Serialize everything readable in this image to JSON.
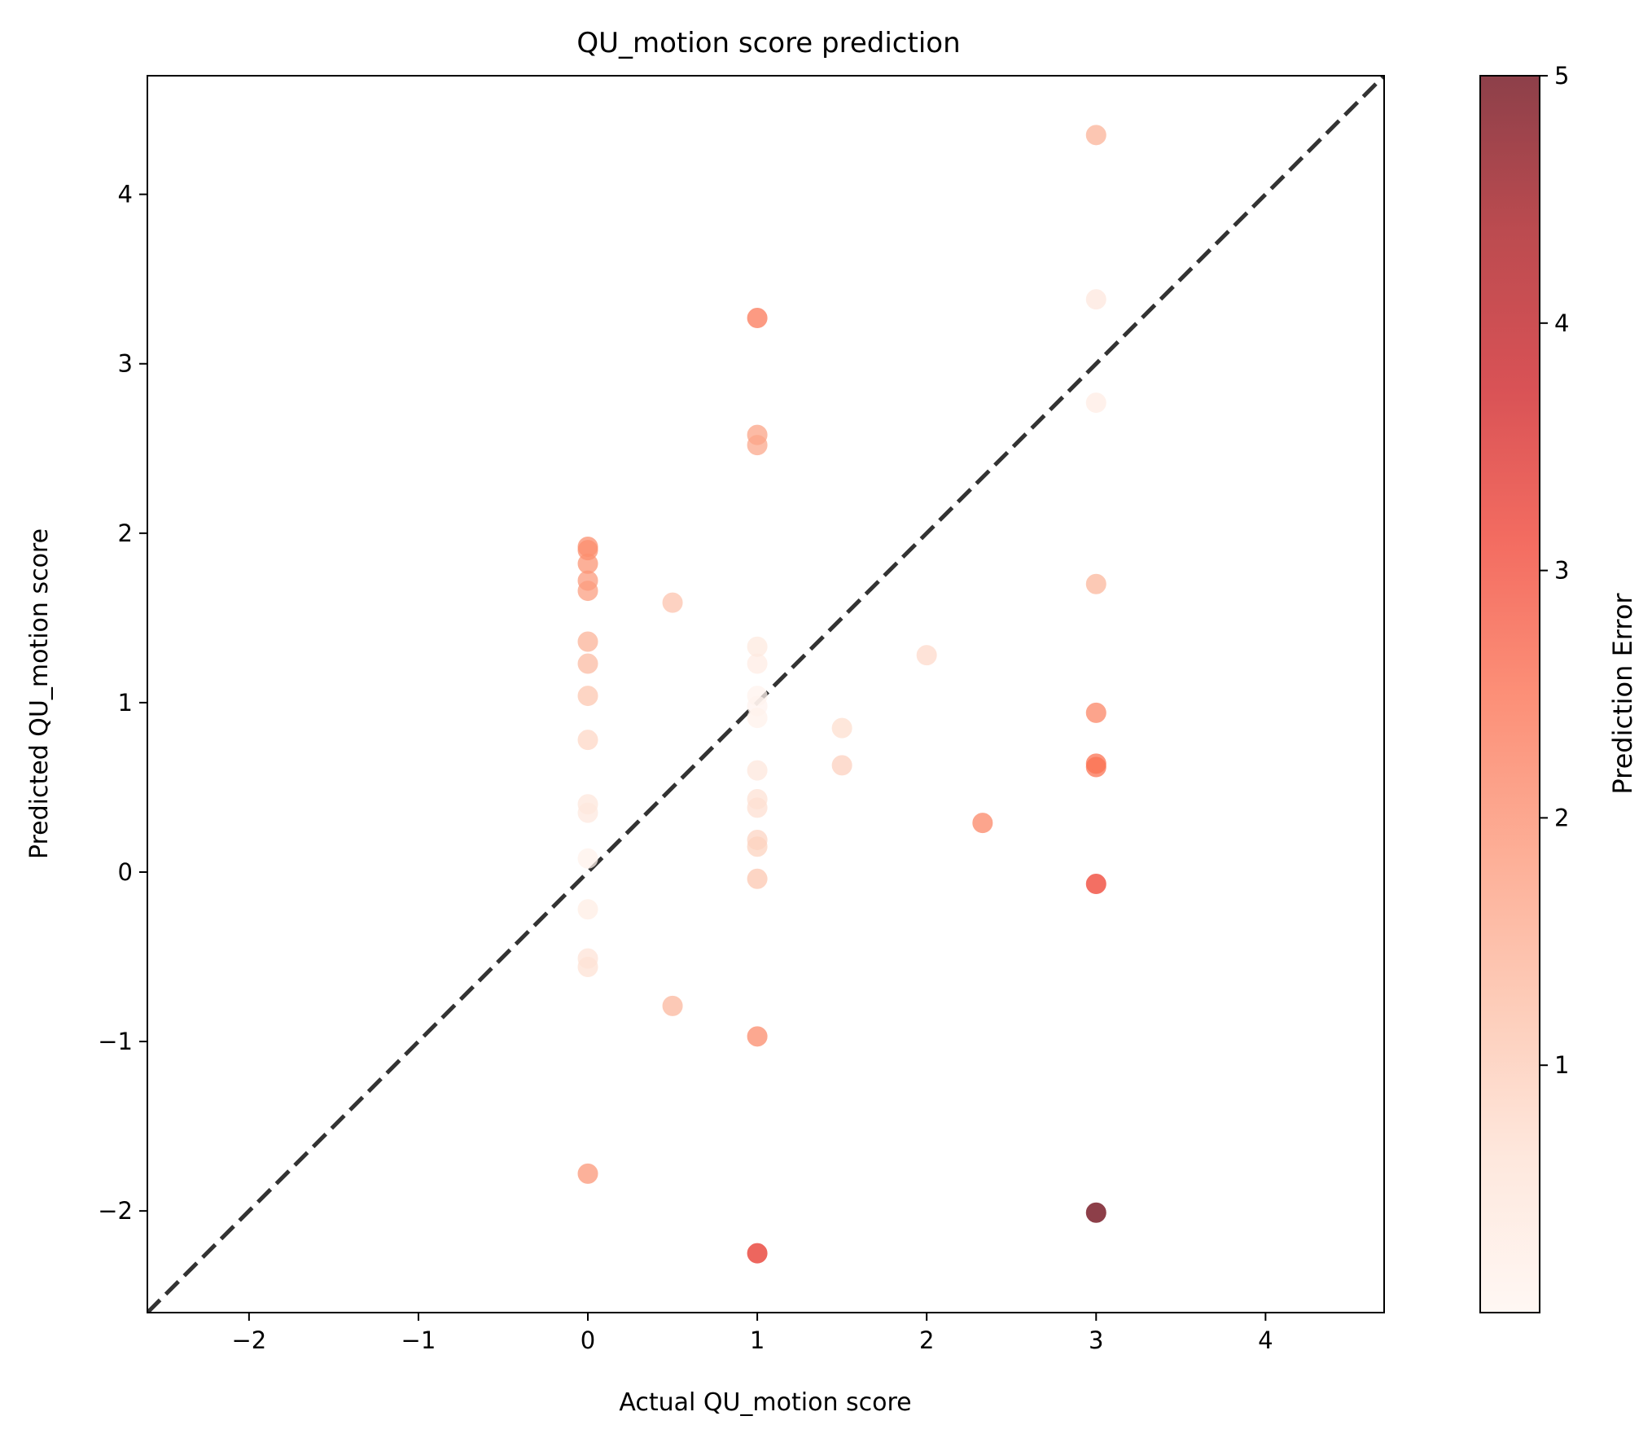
{
  "chart_data": {
    "type": "scatter",
    "title": "QU_motion score prediction",
    "xlabel": "Actual QU_motion score",
    "ylabel": "Predicted QU_motion score",
    "xlim": [
      -2.6,
      4.7
    ],
    "ylim": [
      -2.6,
      4.7
    ],
    "xticks": [
      -2,
      -1,
      0,
      1,
      2,
      3,
      4
    ],
    "yticks": [
      -2,
      -1,
      0,
      1,
      2,
      3,
      4
    ],
    "grid": false,
    "reference_line": {
      "from": [
        -2.6,
        -2.6
      ],
      "to": [
        4.7,
        4.7
      ],
      "style": "dashed",
      "color": "#333333"
    },
    "colorbar": {
      "label": "Prediction Error",
      "range": [
        0.0,
        5.0
      ],
      "ticks": [
        1,
        2,
        3,
        4,
        5
      ],
      "colormap": "Reds",
      "stops": [
        "#fff5f0",
        "#fee0d2",
        "#fcbba1",
        "#fc9272",
        "#fb6a4a",
        "#ef3b2c",
        "#cb181d",
        "#a50f15",
        "#67000d"
      ]
    },
    "points": [
      {
        "x": 0,
        "y": 1.92
      },
      {
        "x": 0,
        "y": 1.9
      },
      {
        "x": 0,
        "y": 1.82
      },
      {
        "x": 0,
        "y": 1.72
      },
      {
        "x": 0,
        "y": 1.66
      },
      {
        "x": 0,
        "y": 1.36
      },
      {
        "x": 0,
        "y": 1.23
      },
      {
        "x": 0,
        "y": 1.04
      },
      {
        "x": 0,
        "y": 0.78
      },
      {
        "x": 0,
        "y": 0.4
      },
      {
        "x": 0,
        "y": 0.35
      },
      {
        "x": 0,
        "y": 0.08
      },
      {
        "x": 0,
        "y": -0.22
      },
      {
        "x": 0,
        "y": -0.51
      },
      {
        "x": 0,
        "y": -0.56
      },
      {
        "x": 0,
        "y": -1.78
      },
      {
        "x": 0.5,
        "y": 1.59
      },
      {
        "x": 0.5,
        "y": -0.79
      },
      {
        "x": 1,
        "y": 3.27
      },
      {
        "x": 1,
        "y": 2.58
      },
      {
        "x": 1,
        "y": 2.52
      },
      {
        "x": 1,
        "y": 1.33
      },
      {
        "x": 1,
        "y": 1.23
      },
      {
        "x": 1,
        "y": 1.04
      },
      {
        "x": 1,
        "y": 0.98
      },
      {
        "x": 1,
        "y": 0.91
      },
      {
        "x": 1,
        "y": 0.6
      },
      {
        "x": 1,
        "y": 0.43
      },
      {
        "x": 1,
        "y": 0.38
      },
      {
        "x": 1,
        "y": 0.19
      },
      {
        "x": 1,
        "y": 0.15
      },
      {
        "x": 1,
        "y": -0.04
      },
      {
        "x": 1,
        "y": -0.97
      },
      {
        "x": 1,
        "y": -2.25
      },
      {
        "x": 1.5,
        "y": 0.85
      },
      {
        "x": 1.5,
        "y": 0.63
      },
      {
        "x": 2,
        "y": 1.28
      },
      {
        "x": 2.33,
        "y": 0.29
      },
      {
        "x": 3,
        "y": 4.35
      },
      {
        "x": 3,
        "y": 3.38
      },
      {
        "x": 3,
        "y": 2.77
      },
      {
        "x": 3,
        "y": 1.7
      },
      {
        "x": 3,
        "y": 0.94
      },
      {
        "x": 3,
        "y": 0.64
      },
      {
        "x": 3,
        "y": 0.62
      },
      {
        "x": 3,
        "y": -0.07
      },
      {
        "x": 3,
        "y": -2.01
      }
    ]
  }
}
